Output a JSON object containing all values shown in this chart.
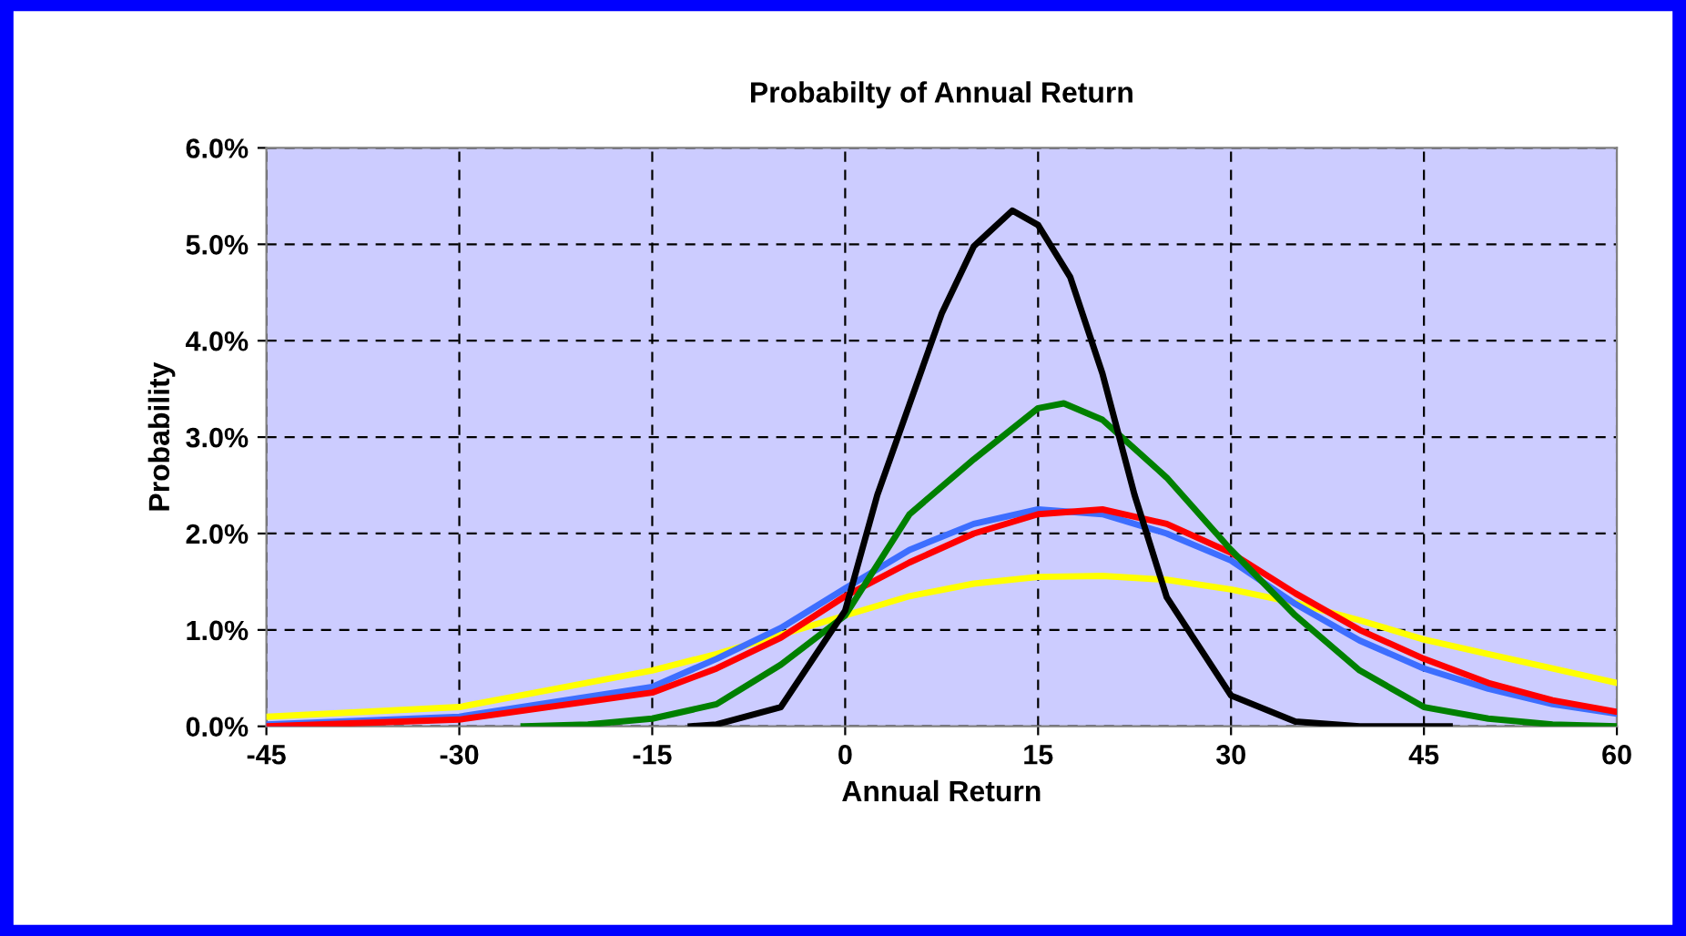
{
  "chart_data": {
    "type": "line",
    "title": "Probabilty of Annual Return",
    "xlabel": "Annual Return",
    "ylabel": "Probability",
    "xlim": [
      -45,
      60
    ],
    "xticks": [
      -45,
      -30,
      -15,
      0,
      15,
      30,
      45,
      60
    ],
    "ylim": [
      0,
      6
    ],
    "yticks": [
      {
        "value": 0,
        "label": "0.0%"
      },
      {
        "value": 1,
        "label": "1.0%"
      },
      {
        "value": 2,
        "label": "2.0%"
      },
      {
        "value": 3,
        "label": "3.0%"
      },
      {
        "value": 4,
        "label": "4.0%"
      },
      {
        "value": 5,
        "label": "5.0%"
      },
      {
        "value": 6,
        "label": "6.0%"
      }
    ],
    "grid": true,
    "marker": "none",
    "line_style": "solid",
    "series": [
      {
        "color": "#ffff00",
        "x": [
          -45,
          -30,
          -15,
          -10,
          -5,
          0,
          5,
          10,
          15,
          20,
          25,
          30,
          35,
          40,
          45,
          50,
          55,
          60
        ],
        "values": [
          0.1,
          0.2,
          0.58,
          0.75,
          0.95,
          1.15,
          1.35,
          1.48,
          1.55,
          1.56,
          1.52,
          1.42,
          1.28,
          1.1,
          0.9,
          0.75,
          0.6,
          0.45
        ]
      },
      {
        "color": "#3d6eff",
        "x": [
          -45,
          -30,
          -15,
          -10,
          -5,
          0,
          5,
          10,
          15,
          20,
          25,
          30,
          35,
          40,
          45,
          50,
          55,
          60
        ],
        "values": [
          0.02,
          0.1,
          0.41,
          0.7,
          1.02,
          1.43,
          1.83,
          2.1,
          2.25,
          2.2,
          2.0,
          1.72,
          1.27,
          0.89,
          0.6,
          0.39,
          0.23,
          0.13
        ]
      },
      {
        "color": "#ff0000",
        "x": [
          -45,
          -30,
          -15,
          -10,
          -5,
          0,
          5,
          10,
          15,
          20,
          25,
          30,
          35,
          40,
          45,
          50,
          55,
          60
        ],
        "values": [
          0.0,
          0.07,
          0.35,
          0.6,
          0.92,
          1.35,
          1.7,
          2.0,
          2.2,
          2.25,
          2.1,
          1.8,
          1.38,
          1.0,
          0.7,
          0.45,
          0.27,
          0.15
        ]
      },
      {
        "color": "#008000",
        "x": [
          -25,
          -20,
          -15,
          -10,
          -5,
          0,
          5,
          10,
          15,
          17,
          20,
          25,
          30,
          35,
          40,
          45,
          50,
          55,
          60
        ],
        "values": [
          0,
          0.02,
          0.08,
          0.23,
          0.64,
          1.15,
          2.2,
          2.77,
          3.3,
          3.35,
          3.18,
          2.58,
          1.83,
          1.15,
          0.58,
          0.2,
          0.08,
          0.02,
          0
        ]
      },
      {
        "color": "#000000",
        "x": [
          -12,
          -10,
          -5,
          0,
          2.5,
          5,
          7.5,
          10,
          13,
          15,
          17.5,
          20,
          22.5,
          25,
          30,
          35,
          40,
          47
        ],
        "values": [
          0,
          0.02,
          0.2,
          1.2,
          2.4,
          3.34,
          4.28,
          4.98,
          5.35,
          5.2,
          4.66,
          3.66,
          2.4,
          1.34,
          0.32,
          0.05,
          0,
          0
        ]
      }
    ]
  }
}
